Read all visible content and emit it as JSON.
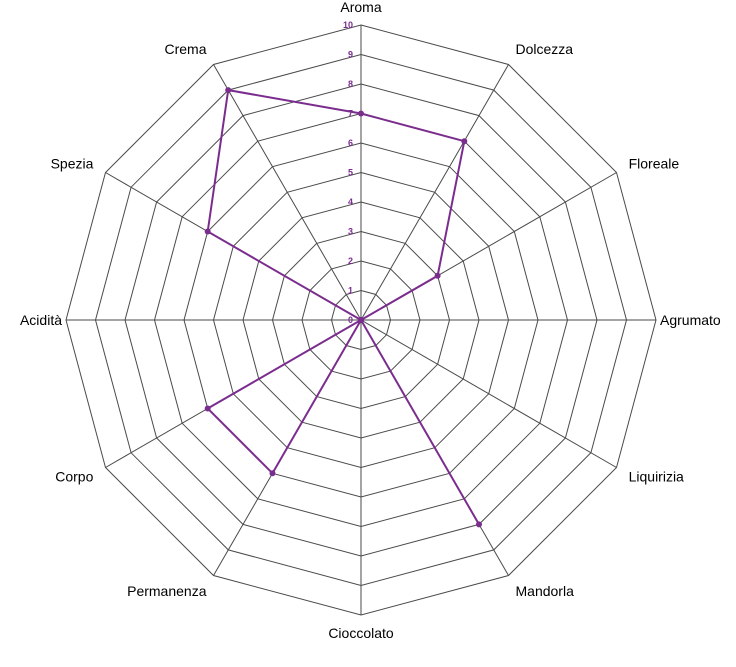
{
  "chart_data": {
    "type": "radar",
    "title": "",
    "categories": [
      "Aroma",
      "Dolcezza",
      "Floreale",
      "Agrumato",
      "Liquirizia",
      "Mandorla",
      "Cioccolato",
      "Permanenza",
      "Corpo",
      "Acidità",
      "Spezia",
      "Crema"
    ],
    "series": [
      {
        "values": [
          7,
          7,
          3,
          0,
          0,
          8,
          0,
          6,
          6,
          0,
          6,
          9
        ]
      }
    ],
    "rlim": [
      0,
      10
    ],
    "ticks": [
      "0",
      "1",
      "2",
      "3",
      "4",
      "5",
      "6",
      "7",
      "8",
      "9",
      "10"
    ],
    "grid": true,
    "legend": "none"
  },
  "colors": {
    "series": "#7b2d8e",
    "tick_labels": "#7b2d8e",
    "grid": "#4a4a4a",
    "labels": "#000000"
  }
}
